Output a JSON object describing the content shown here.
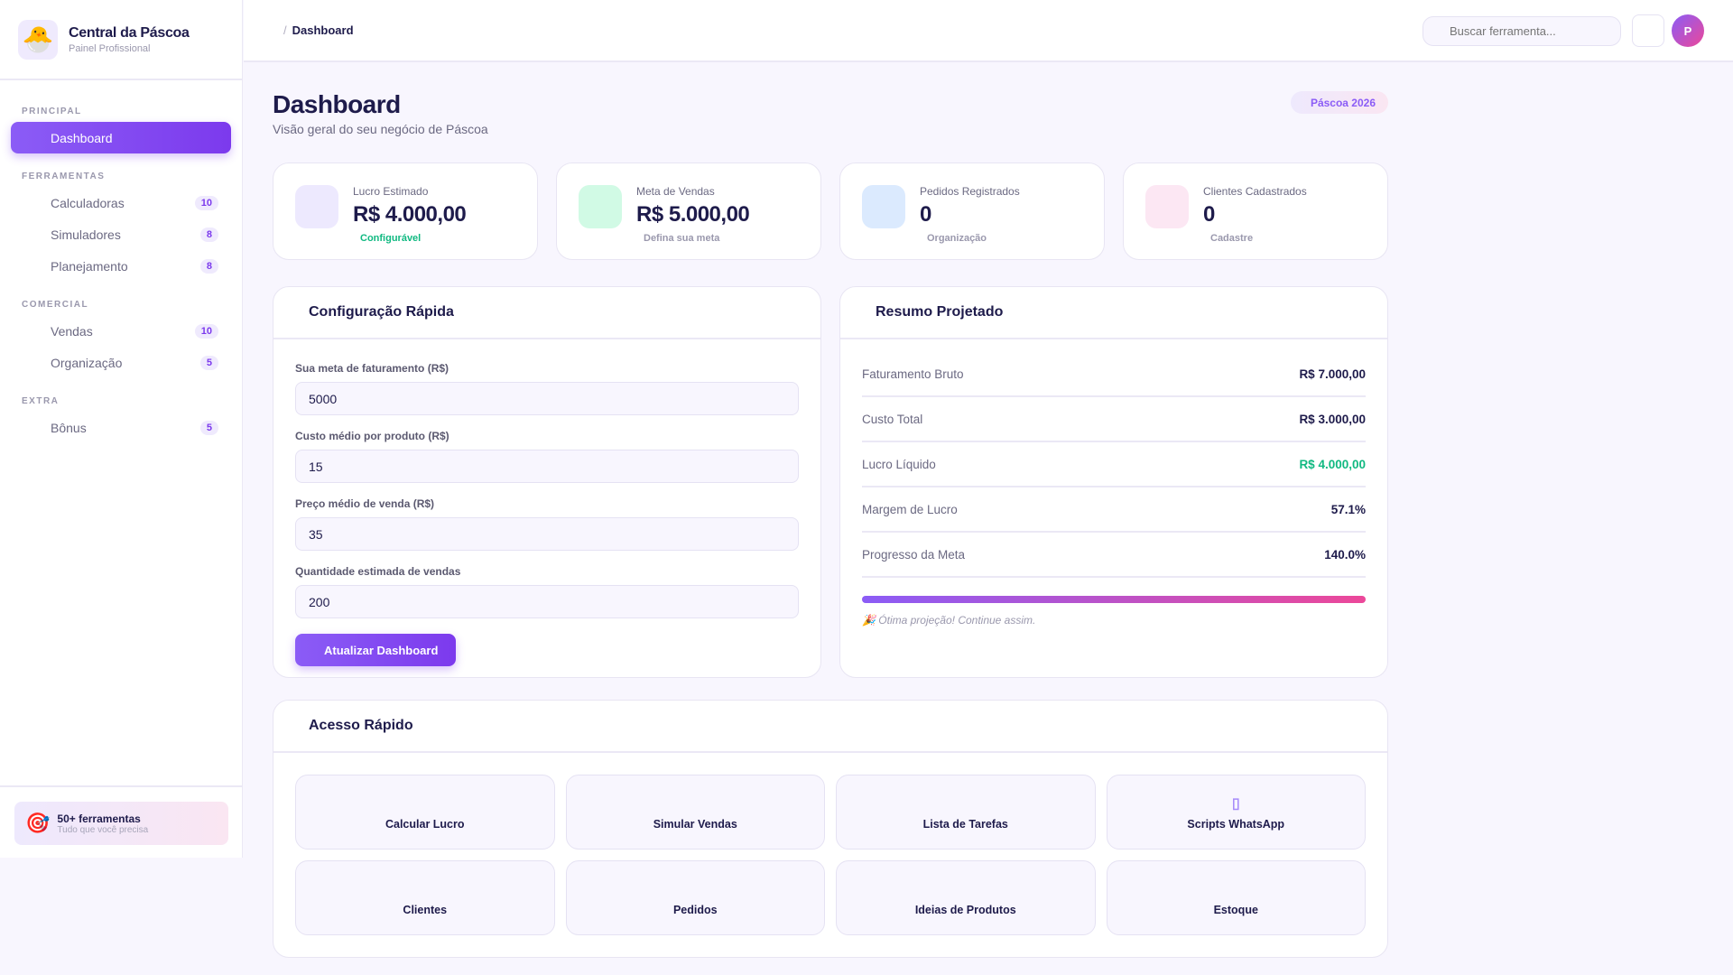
{
  "brand": {
    "title": "Central da Páscoa",
    "subtitle": "Painel Profissional",
    "logo": "🐣"
  },
  "sidebar": {
    "sections": [
      {
        "label": "PRINCIPAL",
        "items": [
          {
            "label": "Dashboard",
            "active": true
          }
        ]
      },
      {
        "label": "FERRAMENTAS",
        "items": [
          {
            "label": "Calculadoras",
            "badge": "10"
          },
          {
            "label": "Simuladores",
            "badge": "8"
          },
          {
            "label": "Planejamento",
            "badge": "8"
          }
        ]
      },
      {
        "label": "COMERCIAL",
        "items": [
          {
            "label": "Vendas",
            "badge": "10"
          },
          {
            "label": "Organização",
            "badge": "5"
          }
        ]
      },
      {
        "label": "EXTRA",
        "items": [
          {
            "label": "Bônus",
            "badge": "5"
          }
        ]
      }
    ],
    "promo": {
      "icon": "🎯",
      "title": "50+ ferramentas",
      "subtitle": "Tudo que você precisa"
    }
  },
  "header": {
    "breadcrumb_sep": "/",
    "breadcrumb": "Dashboard",
    "search_placeholder": "Buscar ferramenta...",
    "avatar": "P"
  },
  "page": {
    "title": "Dashboard",
    "subtitle": "Visão geral do seu negócio de Páscoa",
    "pill": "Páscoa 2026"
  },
  "stats": [
    {
      "label": "Lucro Estimado",
      "value": "R$ 4.000,00",
      "note": "Configurável",
      "icon_bg": "#ede9fe",
      "note_color": "#10b981"
    },
    {
      "label": "Meta de Vendas",
      "value": "R$ 5.000,00",
      "note": "Defina sua meta",
      "icon_bg": "#d1fae5"
    },
    {
      "label": "Pedidos Registrados",
      "value": "0",
      "note": "Organização",
      "icon_bg": "#dbeafe"
    },
    {
      "label": "Clientes Cadastrados",
      "value": "0",
      "note": "Cadastre",
      "icon_bg": "#fce7f3"
    }
  ],
  "config": {
    "title": "Configuração Rápida",
    "fields": [
      {
        "label": "Sua meta de faturamento (R$)",
        "value": "5000"
      },
      {
        "label": "Custo médio por produto (R$)",
        "value": "15"
      },
      {
        "label": "Preço médio de venda (R$)",
        "value": "35"
      },
      {
        "label": "Quantidade estimada de vendas",
        "value": "200"
      }
    ],
    "button": "Atualizar Dashboard"
  },
  "summary": {
    "title": "Resumo Projetado",
    "rows": [
      {
        "label": "Faturamento Bruto",
        "value": "R$ 7.000,00"
      },
      {
        "label": "Custo Total",
        "value": "R$ 3.000,00"
      },
      {
        "label": "Lucro Líquido",
        "value": "R$ 4.000,00",
        "color": "#10b981"
      },
      {
        "label": "Margem de Lucro",
        "value": "57.1%"
      },
      {
        "label": "Progresso da Meta",
        "value": "140.0%"
      }
    ],
    "progress_percent": 100,
    "note": "🎉 Ótima projeção! Continue assim."
  },
  "quick": {
    "title": "Acesso Rápido",
    "tiles": [
      {
        "label": "Calcular Lucro"
      },
      {
        "label": "Simular Vendas"
      },
      {
        "label": "Lista de Tarefas"
      },
      {
        "label": "Scripts WhatsApp",
        "icon": "▯"
      },
      {
        "label": "Clientes"
      },
      {
        "label": "Pedidos"
      },
      {
        "label": "Ideias de Produtos"
      },
      {
        "label": "Estoque"
      }
    ]
  }
}
